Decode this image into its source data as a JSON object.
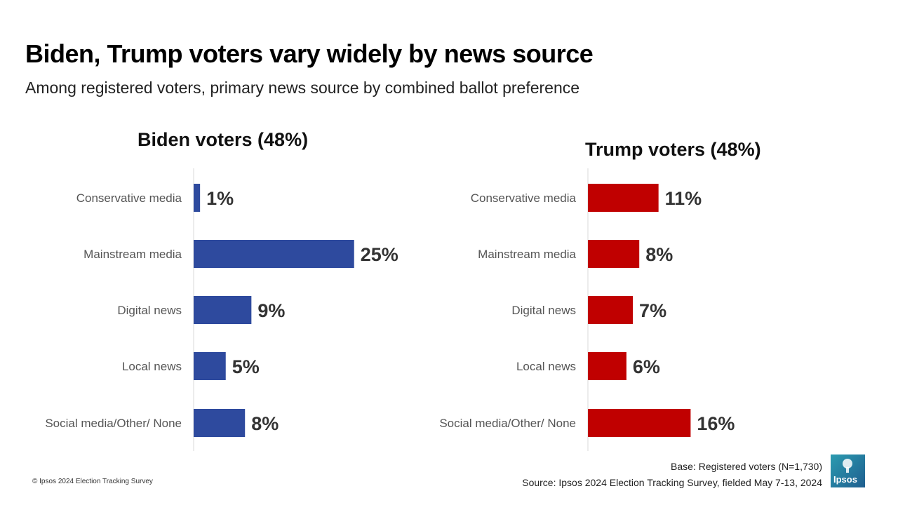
{
  "title": "Biden, Trump voters vary widely by news source",
  "subtitle": "Among registered voters, primary news source by combined ballot preference",
  "colors": {
    "biden": "#2e4a9e",
    "trump": "#c00000",
    "axis": "#d9d9d9"
  },
  "chart_data": [
    {
      "type": "bar",
      "orientation": "horizontal",
      "title": "Biden voters (48%)",
      "categories": [
        "Conservative media",
        "Mainstream media",
        "Digital news",
        "Local news",
        "Social media/Other/ None"
      ],
      "values": [
        1,
        25,
        9,
        5,
        8
      ],
      "labels": [
        "1%",
        "25%",
        "9%",
        "5%",
        "8%"
      ],
      "unit": "%",
      "xlim": [
        0,
        30
      ],
      "color": "#2e4a9e"
    },
    {
      "type": "bar",
      "orientation": "horizontal",
      "title": "Trump voters (48%)",
      "categories": [
        "Conservative media",
        "Mainstream media",
        "Digital news",
        "Local news",
        "Social media/Other/ None"
      ],
      "values": [
        11,
        8,
        7,
        6,
        16
      ],
      "labels": [
        "11%",
        "8%",
        "7%",
        "6%",
        "16%"
      ],
      "unit": "%",
      "xlim": [
        0,
        30
      ],
      "color": "#c00000"
    }
  ],
  "footer": {
    "copyright": "© Ipsos 2024 Election Tracking Survey",
    "base": "Base: Registered voters (N=1,730)",
    "source": "Source: Ipsos 2024 Election Tracking Survey, fielded May 7-13, 2024"
  },
  "logo": {
    "text": "Ipsos"
  }
}
